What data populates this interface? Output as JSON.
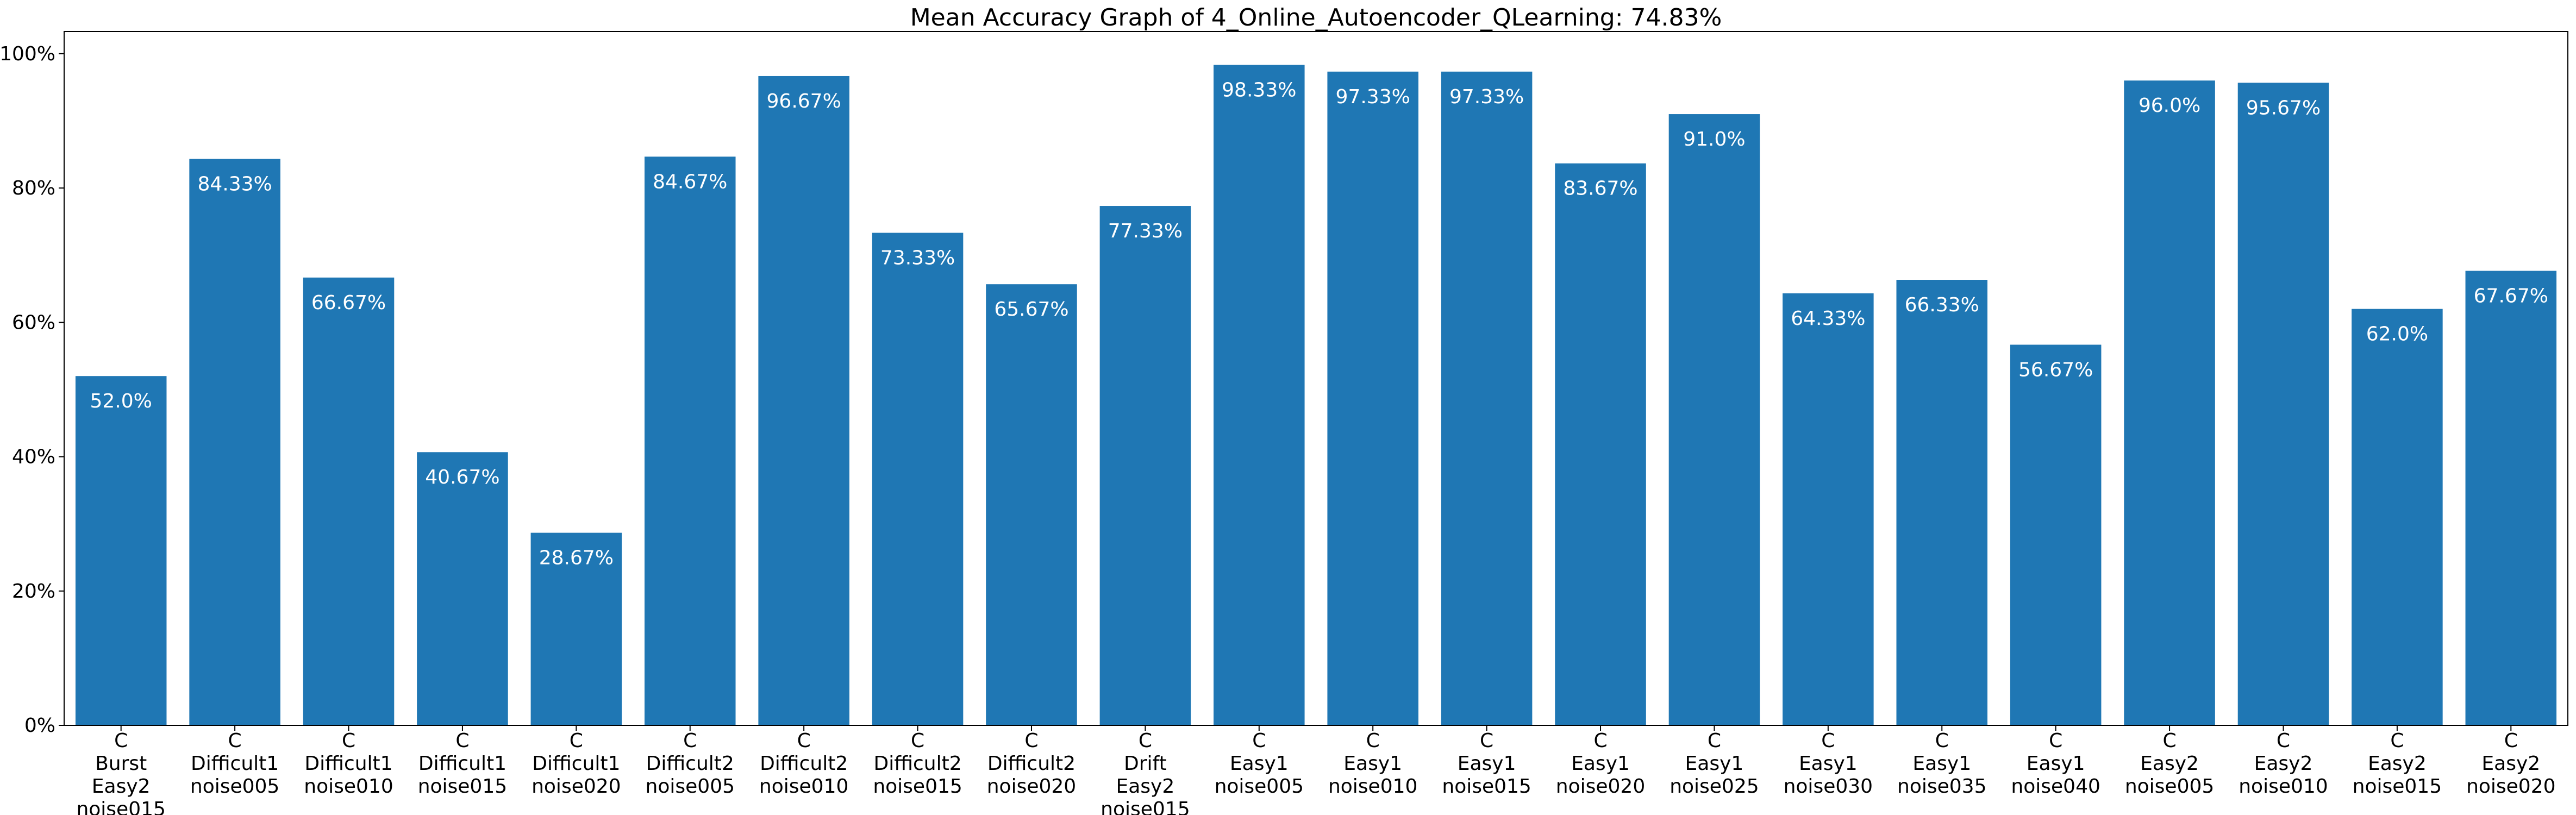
{
  "chart_data": {
    "type": "bar",
    "title": "Mean Accuracy Graph of 4_Online_Autoencoder_QLearning: 74.83%",
    "xlabel": "",
    "ylabel": "",
    "ylim": [
      0,
      103.3
    ],
    "yticks": [
      0,
      20,
      40,
      60,
      80,
      100
    ],
    "ytick_labels": [
      "0%",
      "20%",
      "40%",
      "60%",
      "80%",
      "100%"
    ],
    "grid": false,
    "legend": "none",
    "bar_color": "#1f77b4",
    "label_color": "#ffffff",
    "categories": [
      "C\nBurst\nEasy2\nnoise015",
      "C\nDifficult1\nnoise005",
      "C\nDifficult1\nnoise010",
      "C\nDifficult1\nnoise015",
      "C\nDifficult1\nnoise020",
      "C\nDifficult2\nnoise005",
      "C\nDifficult2\nnoise010",
      "C\nDifficult2\nnoise015",
      "C\nDifficult2\nnoise020",
      "C\nDrift\nEasy2\nnoise015",
      "C\nEasy1\nnoise005",
      "C\nEasy1\nnoise010",
      "C\nEasy1\nnoise015",
      "C\nEasy1\nnoise020",
      "C\nEasy1\nnoise025",
      "C\nEasy1\nnoise030",
      "C\nEasy1\nnoise035",
      "C\nEasy1\nnoise040",
      "C\nEasy2\nnoise005",
      "C\nEasy2\nnoise010",
      "C\nEasy2\nnoise015",
      "C\nEasy2\nnoise020"
    ],
    "values": [
      52.0,
      84.33,
      66.67,
      40.67,
      28.67,
      84.67,
      96.67,
      73.33,
      65.67,
      77.33,
      98.33,
      97.33,
      97.33,
      83.67,
      91.0,
      64.33,
      66.33,
      56.67,
      96.0,
      95.67,
      62.0,
      67.67
    ],
    "value_labels": [
      "52.0%",
      "84.33%",
      "66.67%",
      "40.67%",
      "28.67%",
      "84.67%",
      "96.67%",
      "73.33%",
      "65.67%",
      "77.33%",
      "98.33%",
      "97.33%",
      "97.33%",
      "83.67%",
      "91.0%",
      "64.33%",
      "66.33%",
      "56.67%",
      "96.0%",
      "95.67%",
      "62.0%",
      "67.67%"
    ]
  }
}
